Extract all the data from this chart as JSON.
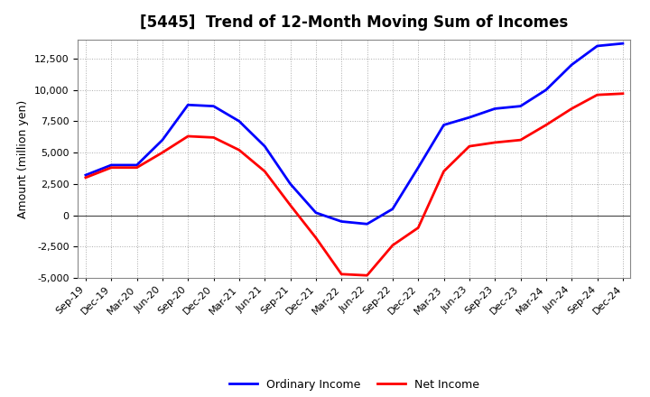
{
  "title": "[5445]  Trend of 12-Month Moving Sum of Incomes",
  "ylabel": "Amount (million yen)",
  "x_labels": [
    "Sep-19",
    "Dec-19",
    "Mar-20",
    "Jun-20",
    "Sep-20",
    "Dec-20",
    "Mar-21",
    "Jun-21",
    "Sep-21",
    "Dec-21",
    "Mar-22",
    "Jun-22",
    "Sep-22",
    "Dec-22",
    "Mar-23",
    "Jun-23",
    "Sep-23",
    "Dec-23",
    "Mar-24",
    "Jun-24",
    "Sep-24",
    "Dec-24"
  ],
  "ordinary_income": [
    3200,
    4000,
    4000,
    6000,
    8800,
    8700,
    7500,
    5500,
    2500,
    200,
    -500,
    -700,
    500,
    3800,
    7200,
    7800,
    8500,
    8700,
    10000,
    12000,
    13500,
    13700
  ],
  "net_income": [
    3000,
    3800,
    3800,
    5000,
    6300,
    6200,
    5200,
    3500,
    800,
    -1800,
    -4700,
    -4800,
    -2400,
    -1000,
    3500,
    5500,
    5800,
    6000,
    7200,
    8500,
    9600,
    9700
  ],
  "ordinary_income_color": "#0000FF",
  "net_income_color": "#FF0000",
  "background_color": "#FFFFFF",
  "plot_bg_color": "#FFFFFF",
  "grid_color": "#AAAAAA",
  "ylim": [
    -5000,
    14000
  ],
  "yticks": [
    -5000,
    -2500,
    0,
    2500,
    5000,
    7500,
    10000,
    12500
  ],
  "line_width": 2.0,
  "legend_labels": [
    "Ordinary Income",
    "Net Income"
  ],
  "title_fontsize": 12,
  "ylabel_fontsize": 9,
  "tick_fontsize": 8
}
